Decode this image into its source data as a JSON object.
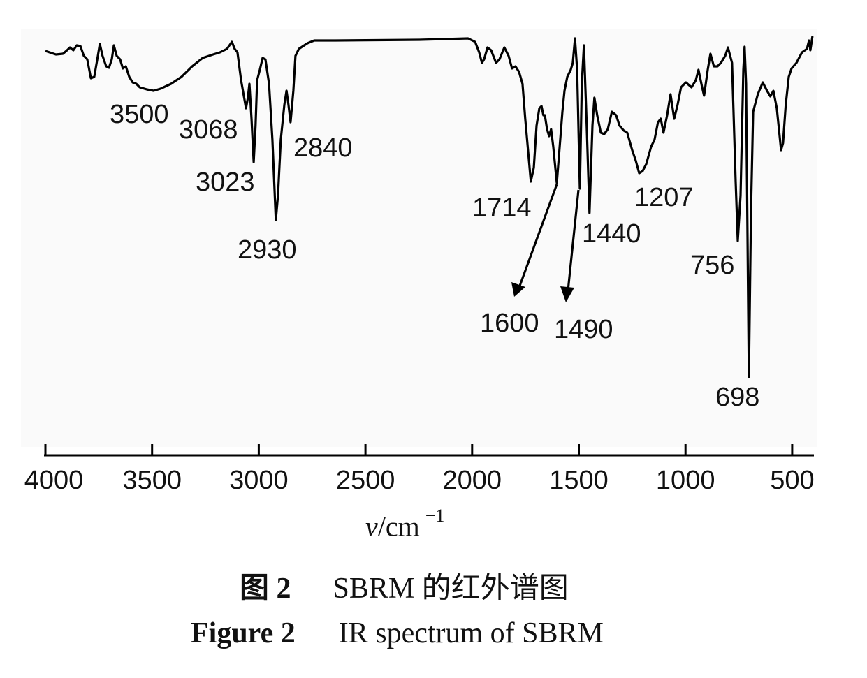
{
  "chart_data": {
    "type": "line",
    "title": "",
    "xlabel_symbol": "ν",
    "xlabel_unit": "/cm",
    "xlabel_exponent": "−1",
    "ylabel": "",
    "xlim": [
      4000,
      405
    ],
    "x_reversed": true,
    "y_axis_shown": false,
    "y_units": "relative transmittance (arbitrary)",
    "grid": false,
    "line_color": "#000000",
    "xticks": [
      "4000",
      "3500",
      "3000",
      "2500",
      "2000",
      "1500",
      "1000",
      "500"
    ],
    "xtick_values": [
      4000,
      3500,
      3000,
      2500,
      2000,
      1500,
      1000,
      500
    ],
    "series": [
      {
        "x": [
          4000,
          3951,
          3918,
          3902,
          3885,
          3869,
          3853,
          3836,
          3820,
          3804,
          3787,
          3771,
          3754,
          3745,
          3732,
          3715,
          3702,
          3689,
          3679,
          3666,
          3650,
          3637,
          3623,
          3607,
          3591,
          3574,
          3558,
          3525,
          3493,
          3460,
          3411,
          3362,
          3312,
          3263,
          3214,
          3182,
          3149,
          3126,
          3113,
          3100,
          3083,
          3060,
          3051,
          3044,
          3034,
          3024,
          3015,
          3008,
          2995,
          2982,
          2969,
          2952,
          2936,
          2920,
          2910,
          2897,
          2880,
          2870,
          2861,
          2851,
          2838,
          2828,
          2812,
          2772,
          2740,
          2641,
          2248,
          2019,
          1986,
          1967,
          1954,
          1944,
          1928,
          1911,
          1888,
          1872,
          1849,
          1829,
          1813,
          1797,
          1780,
          1764,
          1751,
          1738,
          1725,
          1711,
          1698,
          1685,
          1675,
          1666,
          1659,
          1649,
          1639,
          1630,
          1620,
          1603,
          1587,
          1577,
          1567,
          1554,
          1538,
          1528,
          1518,
          1508,
          1495,
          1486,
          1476,
          1463,
          1450,
          1436,
          1427,
          1414,
          1397,
          1381,
          1364,
          1345,
          1325,
          1309,
          1289,
          1273,
          1250,
          1233,
          1217,
          1201,
          1184,
          1161,
          1145,
          1129,
          1116,
          1103,
          1086,
          1070,
          1053,
          1037,
          1021,
          998,
          972,
          952,
          939,
          922,
          913,
          896,
          883,
          867,
          850,
          834,
          814,
          801,
          782,
          765,
          755,
          742,
          729,
          723,
          716,
          703,
          693,
          683,
          661,
          638,
          618,
          602,
          588,
          572,
          552,
          543,
          530,
          516,
          503,
          480,
          454,
          431,
          421,
          415,
          405
        ],
        "y": [
          95.4,
          94.4,
          94.6,
          95.4,
          96.4,
          95.6,
          97,
          96.8,
          94,
          93,
          87.6,
          88,
          94,
          97.4,
          94,
          91,
          90.6,
          93,
          97,
          94,
          93,
          90.4,
          91,
          88,
          86.4,
          86,
          85,
          84.4,
          84,
          84.6,
          86,
          88,
          91,
          93.4,
          94.4,
          95,
          96,
          98,
          96,
          95,
          87,
          79,
          82,
          86,
          76,
          63.6,
          74,
          87,
          90,
          93.4,
          93,
          86,
          70,
          47,
          54,
          70,
          80,
          84,
          80,
          75,
          84,
          94,
          96,
          97.6,
          98.4,
          98.4,
          98.6,
          99,
          98,
          95,
          92,
          93,
          96.4,
          95.6,
          92,
          93,
          96.4,
          94,
          90.4,
          91,
          89.4,
          86,
          76,
          67,
          58,
          62,
          74,
          79,
          79.6,
          77,
          77,
          73,
          71,
          73,
          68,
          57.6,
          70,
          78,
          84,
          88,
          90,
          92,
          99,
          90,
          56,
          86,
          97,
          74,
          49,
          74,
          82,
          77,
          72,
          71.6,
          73,
          78,
          77,
          74,
          72.6,
          72,
          67,
          64,
          60.4,
          61,
          63,
          68,
          70,
          75,
          76,
          72,
          77,
          83,
          76,
          80,
          85,
          86.4,
          85,
          87,
          90,
          85,
          82.6,
          90,
          94.6,
          91,
          91,
          92,
          94,
          96.4,
          92,
          58,
          41,
          54,
          90,
          96.6,
          86,
          2,
          50,
          78,
          83,
          86.4,
          84,
          82.4,
          84,
          79,
          67,
          69,
          80,
          88,
          90.4,
          92,
          95,
          96,
          98.4,
          95.6,
          99.6
        ]
      }
    ],
    "annotations": [
      {
        "label": "3500"
      },
      {
        "label": "3068"
      },
      {
        "label": "3023"
      },
      {
        "label": "2930"
      },
      {
        "label": "2840"
      },
      {
        "label": "1714"
      },
      {
        "label": "1600"
      },
      {
        "label": "1490"
      },
      {
        "label": "1440"
      },
      {
        "label": "1207"
      },
      {
        "label": "756"
      },
      {
        "label": "698"
      }
    ]
  },
  "caption": {
    "cn_figure": "图 2",
    "cn_text": "SBRM 的红外谱图",
    "en_figure": "Figure 2",
    "en_text": "IR spectrum of SBRM"
  }
}
